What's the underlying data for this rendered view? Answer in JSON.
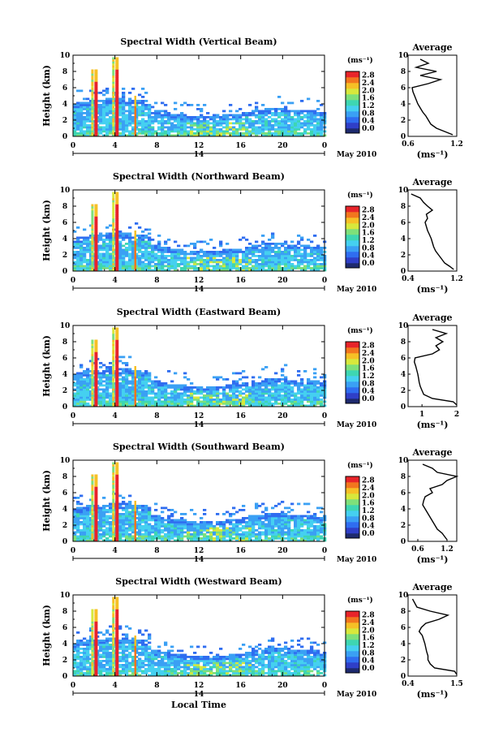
{
  "chart_data": [
    {
      "type": "heatmap",
      "title": "Spectral Width (Vertical Beam)",
      "ylabel": "Height (km)",
      "xticks": [
        "0",
        "4",
        "8",
        "12",
        "16",
        "20",
        "0"
      ],
      "yticks": [
        "0",
        "2",
        "4",
        "6",
        "8",
        "10"
      ],
      "date_day": "14",
      "date_month": "May 2010",
      "colorbar": {
        "unit": "(ms⁻¹)",
        "ticks": [
          "0.0",
          "0.4",
          "0.8",
          "1.2",
          "1.6",
          "2.0",
          "2.4",
          "2.8"
        ]
      },
      "profile": {
        "title": "Average",
        "xticks": [
          "0.6",
          "1.2"
        ],
        "xlim": [
          0.6,
          1.2
        ],
        "xlabel": "(ms⁻¹)",
        "heights": [
          0.2,
          0.6,
          1.0,
          1.5,
          2.0,
          2.5,
          3.0,
          3.5,
          4.0,
          4.5,
          5.0,
          5.5,
          6.0,
          6.5,
          7.0,
          7.5,
          8.0,
          8.5,
          9.0,
          9.5
        ],
        "values": [
          1.15,
          1.05,
          0.95,
          0.88,
          0.85,
          0.82,
          0.78,
          0.75,
          0.72,
          0.7,
          0.68,
          0.66,
          0.65,
          0.85,
          1.0,
          0.75,
          0.95,
          0.7,
          0.85,
          0.75
        ]
      }
    },
    {
      "type": "heatmap",
      "title": "Spectral Width (Northward Beam)",
      "ylabel": "Height (km)",
      "xticks": [
        "0",
        "4",
        "8",
        "12",
        "16",
        "20",
        "0"
      ],
      "yticks": [
        "0",
        "2",
        "4",
        "6",
        "8",
        "10"
      ],
      "date_day": "14",
      "date_month": "May 2010",
      "colorbar": {
        "unit": "(ms⁻¹)",
        "ticks": [
          "0.0",
          "0.4",
          "0.8",
          "1.2",
          "1.6",
          "2.0",
          "2.4",
          "2.8"
        ]
      },
      "profile": {
        "title": "Average",
        "xticks": [
          "0.4",
          "1.2"
        ],
        "xlim": [
          0.4,
          1.2
        ],
        "xlabel": "(ms⁻¹)",
        "heights": [
          0.2,
          0.6,
          1.0,
          1.5,
          2.0,
          2.5,
          3.0,
          3.5,
          4.0,
          4.5,
          5.0,
          5.5,
          6.0,
          6.5,
          7.0,
          7.5,
          8.0,
          8.5,
          9.0,
          9.5
        ],
        "values": [
          1.15,
          1.08,
          1.0,
          0.95,
          0.9,
          0.85,
          0.82,
          0.8,
          0.78,
          0.75,
          0.72,
          0.7,
          0.68,
          0.72,
          0.7,
          0.8,
          0.72,
          0.65,
          0.6,
          0.45
        ]
      }
    },
    {
      "type": "heatmap",
      "title": "Spectral Width (Eastward Beam)",
      "ylabel": "Height (km)",
      "xticks": [
        "0",
        "4",
        "8",
        "12",
        "16",
        "20",
        "0"
      ],
      "yticks": [
        "0",
        "2",
        "4",
        "6",
        "8",
        "10"
      ],
      "date_day": "14",
      "date_month": "May 2010",
      "colorbar": {
        "unit": "(ms⁻¹)",
        "ticks": [
          "0.0",
          "0.4",
          "0.8",
          "1.2",
          "1.6",
          "2.0",
          "2.4",
          "2.8"
        ]
      },
      "profile": {
        "title": "Average",
        "xticks": [
          "1",
          "2"
        ],
        "xlim": [
          0.6,
          2.0
        ],
        "xlabel": "(ms⁻¹)",
        "heights": [
          0.2,
          0.6,
          1.0,
          1.5,
          2.0,
          2.5,
          3.0,
          3.5,
          4.0,
          4.5,
          5.0,
          5.5,
          6.0,
          6.5,
          7.0,
          7.5,
          8.0,
          8.5,
          9.0,
          9.5
        ],
        "values": [
          2.0,
          1.9,
          1.3,
          1.05,
          1.0,
          0.95,
          0.92,
          0.9,
          0.88,
          0.85,
          0.82,
          0.78,
          0.8,
          1.3,
          1.5,
          1.4,
          1.6,
          1.4,
          1.7,
          1.3
        ]
      }
    },
    {
      "type": "heatmap",
      "title": "Spectral Width (Southward Beam)",
      "ylabel": "Height (km)",
      "xticks": [
        "0",
        "4",
        "8",
        "12",
        "16",
        "20",
        "0"
      ],
      "yticks": [
        "0",
        "2",
        "4",
        "6",
        "8",
        "10"
      ],
      "date_day": "14",
      "date_month": "May 2010",
      "colorbar": {
        "unit": "(ms⁻¹)",
        "ticks": [
          "0.0",
          "0.4",
          "0.8",
          "1.2",
          "1.6",
          "2.0",
          "2.4",
          "2.8"
        ]
      },
      "profile": {
        "title": "Average",
        "xticks": [
          "0.6",
          "1.2"
        ],
        "xlim": [
          0.4,
          1.4
        ],
        "xlabel": "(ms⁻¹)",
        "heights": [
          0.2,
          0.6,
          1.0,
          1.5,
          2.0,
          2.5,
          3.0,
          3.5,
          4.0,
          4.5,
          5.0,
          5.5,
          6.0,
          6.5,
          7.0,
          7.5,
          8.0,
          8.5,
          9.0,
          9.5
        ],
        "values": [
          1.2,
          1.15,
          1.1,
          1.0,
          0.95,
          0.9,
          0.85,
          0.8,
          0.75,
          0.7,
          0.72,
          0.75,
          0.9,
          0.85,
          1.1,
          1.2,
          1.4,
          1.0,
          0.9,
          0.7
        ]
      }
    },
    {
      "type": "heatmap",
      "title": "Spectral Width (Westward Beam)",
      "ylabel": "Height (km)",
      "xlabel": "Local Time",
      "xticks": [
        "0",
        "4",
        "8",
        "12",
        "16",
        "20",
        "0"
      ],
      "yticks": [
        "0",
        "2",
        "4",
        "6",
        "8",
        "10"
      ],
      "date_day": "14",
      "date_month": "May 2010",
      "colorbar": {
        "unit": "(ms⁻¹)",
        "ticks": [
          "0.0",
          "0.4",
          "0.8",
          "1.2",
          "1.6",
          "2.0",
          "2.4",
          "2.8"
        ]
      },
      "profile": {
        "title": "Average",
        "xticks": [
          "0.4",
          "1.5"
        ],
        "xlim": [
          0.4,
          1.5
        ],
        "xlabel": "(ms⁻¹)",
        "heights": [
          0.2,
          0.6,
          1.0,
          1.5,
          2.0,
          2.5,
          3.0,
          3.5,
          4.0,
          4.5,
          5.0,
          5.5,
          6.0,
          6.5,
          7.0,
          7.5,
          8.0,
          8.5,
          9.0,
          9.5
        ],
        "values": [
          1.5,
          1.45,
          1.0,
          0.9,
          0.85,
          0.85,
          0.82,
          0.8,
          0.78,
          0.75,
          0.72,
          0.65,
          0.7,
          0.8,
          1.1,
          1.3,
          0.9,
          0.6,
          0.55,
          0.5
        ]
      }
    }
  ],
  "palette": [
    "#1e2a6e",
    "#2f3fc8",
    "#2f6df0",
    "#3aa0f4",
    "#45d0f0",
    "#3ed6b2",
    "#7ee07a",
    "#d8e83c",
    "#f6c026",
    "#f2761e",
    "#e8242a"
  ]
}
